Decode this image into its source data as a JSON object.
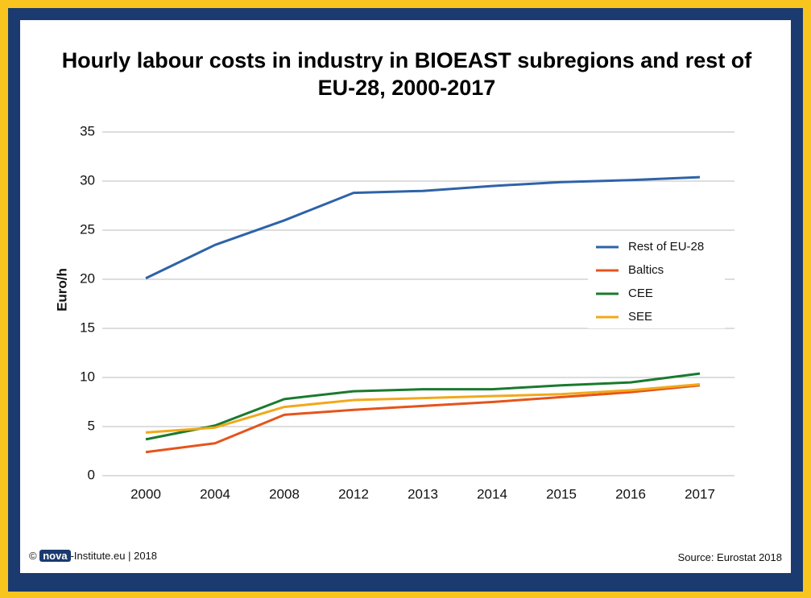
{
  "chart_data": {
    "type": "line",
    "title": "Hourly labour costs in industry in BIOEAST subregions and rest of EU-28, 2000-2017",
    "y_label": "Euro/h",
    "categories": [
      "2000",
      "2004",
      "2008",
      "2012",
      "2013",
      "2014",
      "2015",
      "2016",
      "2017"
    ],
    "series": [
      {
        "name": "Rest of EU-28",
        "color": "#2e63a8",
        "values": [
          20.1,
          23.5,
          26.0,
          28.8,
          29.0,
          29.5,
          29.9,
          30.1,
          30.4
        ]
      },
      {
        "name": "Baltics",
        "color": "#e5541b",
        "values": [
          2.4,
          3.3,
          6.2,
          6.7,
          7.1,
          7.5,
          8.0,
          8.5,
          9.2
        ]
      },
      {
        "name": "CEE",
        "color": "#1a7a2e",
        "values": [
          3.7,
          5.1,
          7.8,
          8.6,
          8.8,
          8.8,
          9.2,
          9.5,
          10.4
        ]
      },
      {
        "name": "SEE",
        "color": "#f2a81a",
        "values": [
          4.4,
          4.9,
          7.0,
          7.7,
          7.9,
          8.1,
          8.3,
          8.7,
          9.3
        ]
      }
    ],
    "ylim": [
      0,
      35
    ],
    "yticks": [
      0,
      5,
      10,
      15,
      20,
      25,
      30,
      35
    ],
    "grid": true,
    "legend": "right"
  },
  "footer": {
    "copyright": "©",
    "logo": "nova",
    "institute": "-Institute.eu | 2018",
    "source": "Source: Eurostat 2018"
  }
}
